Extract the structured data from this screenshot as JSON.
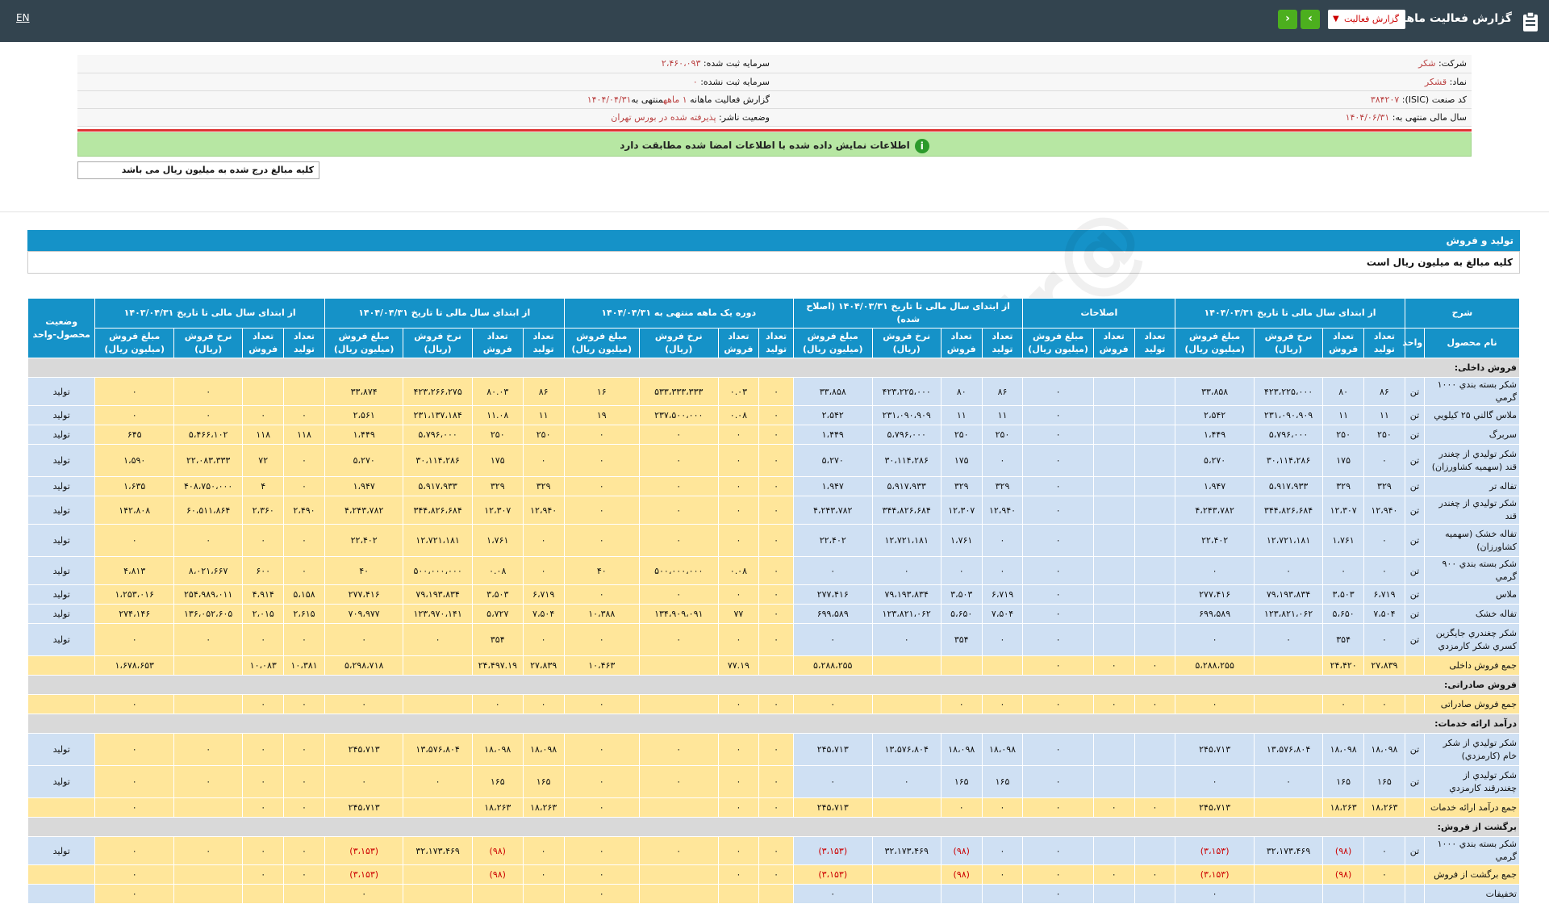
{
  "header": {
    "title": "گزارش فعالیت ماهانه",
    "dropdown_label": "گزارش فعالیت",
    "lang": "EN"
  },
  "info": {
    "company_label": "شرکت:",
    "company_value": "شکر",
    "symbol_label": "نماد:",
    "symbol_value": "قشکر",
    "isic_label": "کد صنعت (ISIC):",
    "isic_value": "۳۸۴۲۰۷",
    "fiscal_label": "سال مالی منتهی به:",
    "fiscal_value": "۱۴۰۴/۰۶/۳۱",
    "capital_label": "سرمایه ثبت شده:",
    "capital_value": "۲،۴۶۰،۰۹۳",
    "unreg_label": "سرمایه ثبت نشده:",
    "unreg_value": "۰",
    "report_label": "گزارش فعالیت ماهانه",
    "report_value": "۱ ماهه",
    "report_end": "منتهی به",
    "report_date": "۱۴۰۴/۰۴/۳۱",
    "status_label": "وضعیت ناشر:",
    "status_value": "پذیرفته شده در بورس تهران"
  },
  "notice": "اطلاعات نمایش داده شده با اطلاعات امضا شده مطابقت دارد",
  "unit_note": "کلیه مبالغ درج شده به میلیون ریال می باشد",
  "section": {
    "title": "تولید و فروش",
    "subtitle": "کلیه مبالغ به میلیون ریال است"
  },
  "table": {
    "groups": {
      "desc": "شرح",
      "g1": "از ابتدای سال مالی تا تاریخ ۱۴۰۴/۰۳/۳۱",
      "g2": "اصلاحات",
      "g3": "از ابتدای سال مالی تا تاریخ ۱۴۰۴/۰۳/۳۱ (اصلاح شده)",
      "g4": "دوره یک ماهه منتهی به ۱۴۰۴/۰۴/۳۱",
      "g5": "از ابتدای سال مالی تا تاریخ ۱۴۰۴/۰۴/۳۱",
      "g6": "از ابتدای سال مالی تا تاریخ ۱۴۰۳/۰۴/۳۱",
      "status": "وضعیت محصول-واحد"
    },
    "sub": {
      "name": "نام محصول",
      "unit": "واحد",
      "prod": "تعداد تولید",
      "sales": "تعداد فروش",
      "rate": "نرخ فروش (ریال)",
      "amount": "مبلغ فروش (میلیون ریال)"
    },
    "rows": [
      {
        "type": "cat",
        "name": "فروش داخلی:"
      },
      {
        "type": "row",
        "name": "شکر بسته بندي ۱۰۰۰ گرمي",
        "unit": "تن",
        "c": [
          "۸۶",
          "۸۰",
          "۴۲۳،۲۲۵،۰۰۰",
          "۳۳،۸۵۸",
          "",
          "",
          "۰",
          "۸۶",
          "۸۰",
          "۴۲۳،۲۲۵،۰۰۰",
          "۳۳،۸۵۸",
          "۰",
          "۰.۰۳",
          "۵۳۳،۳۳۳،۳۳۳",
          "۱۶",
          "۸۶",
          "۸۰.۰۳",
          "۴۲۳،۲۶۶،۲۷۵",
          "۳۳،۸۷۴",
          "",
          "",
          "۰",
          "۰"
        ],
        "status": "تولید"
      },
      {
        "type": "row",
        "name": "ملاس گالني ۲۵ کيلويي",
        "unit": "تن",
        "c": [
          "۱۱",
          "۱۱",
          "۲۳۱،۰۹۰،۹۰۹",
          "۲،۵۴۲",
          "",
          "",
          "۰",
          "۱۱",
          "۱۱",
          "۲۳۱،۰۹۰،۹۰۹",
          "۲،۵۴۲",
          "۰",
          "۰.۰۸",
          "۲۳۷،۵۰۰،۰۰۰",
          "۱۹",
          "۱۱",
          "۱۱.۰۸",
          "۲۳۱،۱۳۷،۱۸۴",
          "۲،۵۶۱",
          "۰",
          "۰",
          "۰",
          "۰"
        ],
        "status": "تولید"
      },
      {
        "type": "row",
        "name": "سربرگ",
        "unit": "تن",
        "c": [
          "۲۵۰",
          "۲۵۰",
          "۵،۷۹۶،۰۰۰",
          "۱،۴۴۹",
          "",
          "",
          "۰",
          "۲۵۰",
          "۲۵۰",
          "۵،۷۹۶،۰۰۰",
          "۱،۴۴۹",
          "۰",
          "۰",
          "۰",
          "۰",
          "۲۵۰",
          "۲۵۰",
          "۵،۷۹۶،۰۰۰",
          "۱،۴۴۹",
          "۱۱۸",
          "۱۱۸",
          "۵،۴۶۶،۱۰۲",
          "۶۴۵"
        ],
        "status": "تولید"
      },
      {
        "type": "row",
        "tall": true,
        "name": "شکر توليدي از چغندر قند (سهميه کشاورزان)",
        "unit": "تن",
        "c": [
          "۰",
          "۱۷۵",
          "۳۰،۱۱۴،۲۸۶",
          "۵،۲۷۰",
          "",
          "",
          "۰",
          "۰",
          "۱۷۵",
          "۳۰،۱۱۴،۲۸۶",
          "۵،۲۷۰",
          "۰",
          "۰",
          "۰",
          "۰",
          "۰",
          "۱۷۵",
          "۳۰،۱۱۴،۲۸۶",
          "۵،۲۷۰",
          "۰",
          "۷۲",
          "۲۲،۰۸۳،۳۳۳",
          "۱،۵۹۰"
        ],
        "status": "تولید"
      },
      {
        "type": "row",
        "name": "تفاله تر",
        "unit": "تن",
        "c": [
          "۳۲۹",
          "۳۲۹",
          "۵،۹۱۷،۹۳۳",
          "۱،۹۴۷",
          "",
          "",
          "۰",
          "۳۲۹",
          "۳۲۹",
          "۵،۹۱۷،۹۳۳",
          "۱،۹۴۷",
          "۰",
          "۰",
          "۰",
          "۰",
          "۳۲۹",
          "۳۲۹",
          "۵،۹۱۷،۹۳۳",
          "۱،۹۴۷",
          "۰",
          "۴",
          "۴۰۸،۷۵۰،۰۰۰",
          "۱،۶۳۵"
        ],
        "status": "تولید"
      },
      {
        "type": "row",
        "name": "شکر توليدي از چغندر قند",
        "unit": "تن",
        "c": [
          "۱۲،۹۴۰",
          "۱۲،۳۰۷",
          "۳۴۴،۸۲۶،۶۸۴",
          "۴،۲۴۳،۷۸۲",
          "",
          "",
          "۰",
          "۱۲،۹۴۰",
          "۱۲،۳۰۷",
          "۳۴۴،۸۲۶،۶۸۴",
          "۴،۲۴۳،۷۸۲",
          "۰",
          "۰",
          "۰",
          "۰",
          "۱۲،۹۴۰",
          "۱۲،۳۰۷",
          "۳۴۴،۸۲۶،۶۸۴",
          "۴،۲۴۳،۷۸۲",
          "۲،۴۹۰",
          "۲،۳۶۰",
          "۶۰،۵۱۱،۸۶۴",
          "۱۴۲،۸۰۸"
        ],
        "status": "تولید"
      },
      {
        "type": "row",
        "tall": true,
        "name": "تفاله خشک (سهميه کشاورزان)",
        "unit": "تن",
        "c": [
          "۰",
          "۱،۷۶۱",
          "۱۲،۷۲۱،۱۸۱",
          "۲۲،۴۰۲",
          "",
          "",
          "۰",
          "۰",
          "۱،۷۶۱",
          "۱۲،۷۲۱،۱۸۱",
          "۲۲،۴۰۲",
          "۰",
          "۰",
          "۰",
          "۰",
          "۰",
          "۱،۷۶۱",
          "۱۲،۷۲۱،۱۸۱",
          "۲۲،۴۰۲",
          "۰",
          "۰",
          "۰",
          "۰"
        ],
        "status": "تولید"
      },
      {
        "type": "row",
        "name": "شکر بسته بندي ۹۰۰ گرمي",
        "unit": "تن",
        "c": [
          "۰",
          "۰",
          "۰",
          "۰",
          "",
          "",
          "۰",
          "۰",
          "۰",
          "۰",
          "۰",
          "۰",
          "۰.۰۸",
          "۵۰۰،۰۰۰،۰۰۰",
          "۴۰",
          "۰",
          "۰.۰۸",
          "۵۰۰،۰۰۰،۰۰۰",
          "۴۰",
          "۰",
          "۶۰۰",
          "۸،۰۲۱،۶۶۷",
          "۴،۸۱۳"
        ],
        "status": "تولید"
      },
      {
        "type": "row",
        "name": "ملاس",
        "unit": "تن",
        "c": [
          "۶،۷۱۹",
          "۳،۵۰۳",
          "۷۹،۱۹۳،۸۳۴",
          "۲۷۷،۴۱۶",
          "",
          "",
          "۰",
          "۶،۷۱۹",
          "۳،۵۰۳",
          "۷۹،۱۹۳،۸۳۴",
          "۲۷۷،۴۱۶",
          "۰",
          "۰",
          "۰",
          "۰",
          "۶،۷۱۹",
          "۳،۵۰۳",
          "۷۹،۱۹۳،۸۳۴",
          "۲۷۷،۴۱۶",
          "۵،۱۵۸",
          "۴،۹۱۴",
          "۲۵۴،۹۸۹،۰۱۱",
          "۱،۲۵۳،۰۱۶"
        ],
        "status": "تولید"
      },
      {
        "type": "row",
        "name": "تفاله خشک",
        "unit": "تن",
        "c": [
          "۷،۵۰۴",
          "۵،۶۵۰",
          "۱۲۳،۸۲۱،۰۶۲",
          "۶۹۹،۵۸۹",
          "",
          "",
          "۰",
          "۷،۵۰۴",
          "۵،۶۵۰",
          "۱۲۳،۸۲۱،۰۶۲",
          "۶۹۹،۵۸۹",
          "۰",
          "۷۷",
          "۱۳۴،۹۰۹،۰۹۱",
          "۱۰،۳۸۸",
          "۷،۵۰۴",
          "۵،۷۲۷",
          "۱۲۳،۹۷۰،۱۴۱",
          "۷۰۹،۹۷۷",
          "۲،۶۱۵",
          "۲،۰۱۵",
          "۱۳۶،۰۵۲،۶۰۵",
          "۲۷۴،۱۴۶"
        ],
        "status": "تولید"
      },
      {
        "type": "row",
        "tall": true,
        "name": "شکر چغندري جايگزين کسري شکر کارمزدي",
        "unit": "تن",
        "c": [
          "۰",
          "۳۵۴",
          "۰",
          "۰",
          "",
          "",
          "۰",
          "۰",
          "۳۵۴",
          "۰",
          "۰",
          "۰",
          "۰",
          "۰",
          "۰",
          "۰",
          "۳۵۴",
          "۰",
          "۰",
          "۰",
          "۰",
          "۰",
          "۰"
        ],
        "status": "تولید"
      },
      {
        "type": "total",
        "name": "جمع فروش داخلی",
        "unit": "",
        "c": [
          "۲۷،۸۳۹",
          "۲۴،۴۲۰",
          "",
          "۵،۲۸۸،۲۵۵",
          "۰",
          "۰",
          "۰",
          "",
          "",
          "",
          "۵،۲۸۸،۲۵۵",
          "",
          "۷۷.۱۹",
          "",
          "۱۰،۴۶۳",
          "۲۷،۸۳۹",
          "۲۴،۴۹۷.۱۹",
          "",
          "۵،۲۹۸،۷۱۸",
          "۱۰،۳۸۱",
          "۱۰،۰۸۳",
          "",
          "۱،۶۷۸،۶۵۳"
        ],
        "status": ""
      },
      {
        "type": "cat",
        "name": "فروش صادراتی:"
      },
      {
        "type": "total",
        "name": "جمع فروش صادراتی",
        "unit": "",
        "c": [
          "۰",
          "۰",
          "",
          "۰",
          "۰",
          "۰",
          "۰",
          "۰",
          "۰",
          "",
          "۰",
          "۰",
          "۰",
          "",
          "۰",
          "۰",
          "۰",
          "",
          "۰",
          "۰",
          "۰",
          "",
          "۰"
        ],
        "status": ""
      },
      {
        "type": "cat",
        "name": "درآمد ارائه خدمات:"
      },
      {
        "type": "row",
        "tall": true,
        "name": "شکر توليدي از شکر خام (کارمزدي)",
        "unit": "تن",
        "c": [
          "۱۸،۰۹۸",
          "۱۸،۰۹۸",
          "۱۳،۵۷۶،۸۰۴",
          "۲۴۵،۷۱۳",
          "",
          "",
          "۰",
          "۱۸،۰۹۸",
          "۱۸،۰۹۸",
          "۱۳،۵۷۶،۸۰۴",
          "۲۴۵،۷۱۳",
          "۰",
          "۰",
          "۰",
          "۰",
          "۱۸،۰۹۸",
          "۱۸،۰۹۸",
          "۱۳،۵۷۶،۸۰۴",
          "۲۴۵،۷۱۳",
          "۰",
          "۰",
          "۰",
          "۰"
        ],
        "status": "تولید"
      },
      {
        "type": "row",
        "tall": true,
        "name": "شکر توليدي از چغندرقند کارمزدي",
        "unit": "تن",
        "c": [
          "۱۶۵",
          "۱۶۵",
          "۰",
          "۰",
          "",
          "",
          "۰",
          "۱۶۵",
          "۱۶۵",
          "۰",
          "۰",
          "۰",
          "۰",
          "۰",
          "۰",
          "۱۶۵",
          "۱۶۵",
          "۰",
          "۰",
          "۰",
          "۰",
          "۰",
          "۰"
        ],
        "status": "تولید"
      },
      {
        "type": "total",
        "name": "جمع درآمد ارائه خدمات",
        "unit": "",
        "c": [
          "۱۸،۲۶۳",
          "۱۸،۲۶۳",
          "",
          "۲۴۵،۷۱۳",
          "۰",
          "۰",
          "۰",
          "۰",
          "۰",
          "",
          "۲۴۵،۷۱۳",
          "۰",
          "۰",
          "",
          "۰",
          "۱۸،۲۶۳",
          "۱۸،۲۶۳",
          "",
          "۲۴۵،۷۱۳",
          "۰",
          "۰",
          "",
          "۰"
        ],
        "status": ""
      },
      {
        "type": "cat",
        "name": "برگشت از فروش:"
      },
      {
        "type": "row",
        "name": "شکر بسته بندي ۱۰۰۰ گرمي",
        "unit": "تن",
        "neg": [
          1,
          3,
          8,
          10,
          16,
          18
        ],
        "c": [
          "۰",
          "(۹۸)",
          "۳۲،۱۷۳،۴۶۹",
          "(۳،۱۵۳)",
          "",
          "",
          "۰",
          "۰",
          "(۹۸)",
          "۳۲،۱۷۳،۴۶۹",
          "(۳،۱۵۳)",
          "۰",
          "۰",
          "۰",
          "۰",
          "۰",
          "(۹۸)",
          "۳۲،۱۷۳،۴۶۹",
          "(۳،۱۵۳)",
          "۰",
          "۰",
          "۰",
          "۰"
        ],
        "status": "تولید"
      },
      {
        "type": "total",
        "name": "جمع برگشت از فروش",
        "unit": "",
        "neg": [
          1,
          3,
          8,
          10,
          16,
          18
        ],
        "c": [
          "۰",
          "(۹۸)",
          "",
          "(۳،۱۵۳)",
          "۰",
          "۰",
          "۰",
          "۰",
          "(۹۸)",
          "",
          "(۳،۱۵۳)",
          "۰",
          "۰",
          "",
          "۰",
          "۰",
          "(۹۸)",
          "",
          "(۳،۱۵۳)",
          "۰",
          "۰",
          "",
          "۰"
        ],
        "status": ""
      },
      {
        "type": "row",
        "name": "تخفیفات",
        "unit": "",
        "c": [
          "",
          "",
          "",
          "۰",
          "",
          "",
          "۰",
          "",
          "",
          "",
          "۰",
          "",
          "",
          "",
          "۰",
          "",
          "",
          "",
          "۰",
          "",
          "",
          "",
          "۰"
        ],
        "status": ""
      }
    ]
  },
  "watermark": "@Codal360.ir",
  "colors": {
    "topbar": "#33444f",
    "accent": "#1592c8",
    "row": "#cfe0f3",
    "highlight": "#ffe69a",
    "notice": "#b7e7a3"
  }
}
